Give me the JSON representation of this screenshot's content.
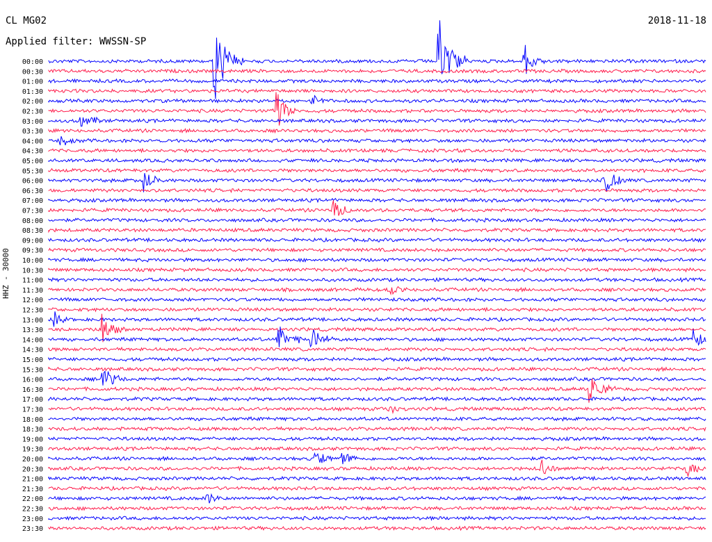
{
  "header": {
    "station": "CL MG02",
    "filter": "Applied filter: WWSSN-SP",
    "date": "2018-11-18"
  },
  "axis": {
    "ylabel": "HHZ - 30000"
  },
  "colors": {
    "blue": "#0000ff",
    "red": "#ff1a4a",
    "background": "#ffffff"
  },
  "chart_data": {
    "type": "line",
    "title": "CL MG02",
    "subtitle": "Applied filter: WWSSN-SP",
    "ylabel": "HHZ - 30000",
    "xlabel": "",
    "grid": false,
    "rows": [
      "00:00",
      "00:30",
      "01:00",
      "01:30",
      "02:00",
      "02:30",
      "03:00",
      "03:30",
      "04:00",
      "04:30",
      "05:00",
      "05:30",
      "06:00",
      "06:30",
      "07:00",
      "07:30",
      "08:00",
      "08:30",
      "09:00",
      "09:30",
      "10:00",
      "10:30",
      "11:00",
      "11:30",
      "12:00",
      "12:30",
      "13:00",
      "13:30",
      "14:00",
      "14:30",
      "15:00",
      "15:30",
      "16:00",
      "16:30",
      "17:00",
      "17:30",
      "18:00",
      "18:30",
      "19:00",
      "19:30",
      "20:00",
      "20:30",
      "21:00",
      "21:30",
      "22:00",
      "22:30",
      "23:00",
      "23:30"
    ],
    "series": [
      {
        "color": "blue",
        "rows": "even"
      },
      {
        "color": "red",
        "rows": "odd"
      }
    ]
  }
}
